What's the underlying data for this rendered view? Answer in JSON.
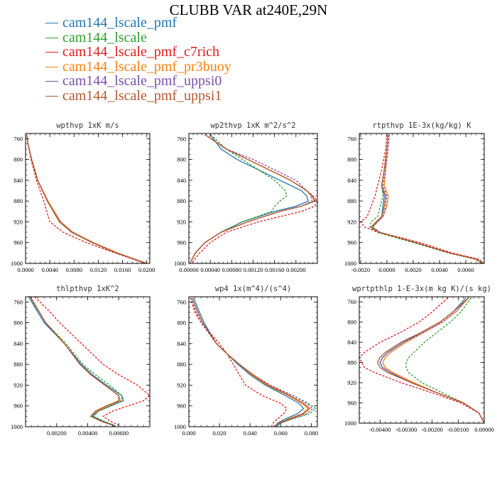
{
  "title": "CLUBB VAR at240E,29N",
  "legend": [
    {
      "name": "cam144_lscale_pmf",
      "color": "#1f77b4"
    },
    {
      "name": "cam144_lscale",
      "color": "#2ca02c"
    },
    {
      "name": "cam144_lscale_pmf_c7rich",
      "color": "#e41a1c"
    },
    {
      "name": "cam144_lscale_pmf_pr3buoy",
      "color": "#ff7f0e"
    },
    {
      "name": "cam144_lscale_pmf_uppsi0",
      "color": "#7b4fa6"
    },
    {
      "name": "cam144_lscale_pmf_uppsi1",
      "color": "#b5562f"
    }
  ],
  "chart_data": [
    {
      "type": "line",
      "title": "wpthvp  1xK m/s",
      "xlim": [
        0,
        0.0205
      ],
      "ylim": [
        1000,
        750
      ],
      "xticks": [
        "0.0000",
        "0.0040",
        "0.0080",
        "0.0120",
        "0.0160",
        "0.0200"
      ],
      "xtick_values": [
        0,
        0.004,
        0.008,
        0.012,
        0.016,
        0.02
      ],
      "yticks": [
        "760",
        "800",
        "840",
        "880",
        "920",
        "960",
        "1000"
      ],
      "ytick_values": [
        760,
        800,
        840,
        880,
        920,
        960,
        1000
      ],
      "y": [
        752,
        770,
        800,
        840,
        880,
        920,
        940,
        960,
        980,
        1000
      ],
      "series": [
        {
          "color": "#1f77b4",
          "x": [
            0.0002,
            0.0004,
            0.001,
            0.002,
            0.0036,
            0.0056,
            0.0076,
            0.011,
            0.015,
            0.02
          ]
        },
        {
          "color": "#2ca02c",
          "x": [
            0.0002,
            0.0004,
            0.001,
            0.002,
            0.0036,
            0.0056,
            0.0076,
            0.011,
            0.015,
            0.02
          ]
        },
        {
          "color": "#e41a1c",
          "x": [
            0.0002,
            0.0004,
            0.0009,
            0.0018,
            0.003,
            0.004,
            0.0062,
            0.01,
            0.0148,
            0.0198
          ],
          "dash": true
        },
        {
          "color": "#ff7f0e",
          "x": [
            0.0002,
            0.0004,
            0.001,
            0.002,
            0.0037,
            0.0058,
            0.0078,
            0.0112,
            0.0152,
            0.02
          ]
        },
        {
          "color": "#7b4fa6",
          "x": [
            0.0002,
            0.0004,
            0.001,
            0.002,
            0.0036,
            0.0057,
            0.0077,
            0.0111,
            0.0151,
            0.02
          ],
          "dash": true
        },
        {
          "color": "#b5562f",
          "x": [
            0.0002,
            0.0004,
            0.001,
            0.002,
            0.0036,
            0.0056,
            0.0076,
            0.011,
            0.015,
            0.02
          ]
        }
      ]
    },
    {
      "type": "line",
      "title": "wp2thvp  1xK m^2/s^2",
      "xlim": [
        0,
        0.0024
      ],
      "ylim": [
        1000,
        750
      ],
      "xticks": [
        "0.00000",
        "0.00040",
        "0.00080",
        "0.00120",
        "0.00160",
        "0.00200"
      ],
      "xtick_values": [
        0,
        0.0004,
        0.0008,
        0.0012,
        0.0016,
        0.002
      ],
      "yticks": [
        "760",
        "800",
        "840",
        "880",
        "920",
        "960",
        "1000"
      ],
      "ytick_values": [
        760,
        800,
        840,
        880,
        920,
        960,
        1000
      ],
      "y": [
        752,
        780,
        800,
        820,
        840,
        860,
        870,
        880,
        890,
        900,
        920,
        940,
        960,
        980,
        1000
      ],
      "series": [
        {
          "color": "#1f77b4",
          "x": [
            0.0004,
            0.0006,
            0.0009,
            0.0013,
            0.0017,
            0.0021,
            0.0022,
            0.00223,
            0.002,
            0.0016,
            0.001,
            0.0006,
            0.0003,
            0.00012,
            2e-05
          ]
        },
        {
          "color": "#2ca02c",
          "x": [
            0.0004,
            0.0007,
            0.001,
            0.0013,
            0.0016,
            0.0018,
            0.00183,
            0.0017,
            0.0016,
            0.00155,
            0.001,
            0.0006,
            0.0003,
            0.00012,
            2e-05
          ],
          "dash": true
        },
        {
          "color": "#e41a1c",
          "x": [
            0.0003,
            0.0007,
            0.0011,
            0.0015,
            0.0019,
            0.0022,
            0.00232,
            0.0024,
            0.00235,
            0.0021,
            0.0013,
            0.0007,
            0.0004,
            0.0002,
            5e-05
          ],
          "dash": true
        },
        {
          "color": "#ff7f0e",
          "x": [
            0.0003,
            0.0007,
            0.0011,
            0.0015,
            0.0019,
            0.0022,
            0.0023,
            0.00234,
            0.0021,
            0.0017,
            0.0011,
            0.0006,
            0.0003,
            0.00012,
            2e-05
          ]
        },
        {
          "color": "#7b4fa6",
          "x": [
            0.0003,
            0.0007,
            0.0012,
            0.0016,
            0.002,
            0.0022,
            0.00228,
            0.0023,
            0.0021,
            0.0017,
            0.0011,
            0.0006,
            0.0003,
            0.00012,
            2e-05
          ],
          "dash": true
        },
        {
          "color": "#b5562f",
          "x": [
            0.0003,
            0.0007,
            0.0011,
            0.0015,
            0.0019,
            0.0022,
            0.0023,
            0.00236,
            0.0021,
            0.0017,
            0.0011,
            0.0006,
            0.0003,
            0.00012,
            2e-05
          ]
        }
      ]
    },
    {
      "type": "line",
      "title": "rtpthvp  1E-3x(kg/kg) K",
      "xlim": [
        -0.0021,
        0.0074
      ],
      "ylim": [
        1000,
        750
      ],
      "xticks": [
        "-0.0020",
        "0.0000",
        "0.0020",
        "0.0040",
        "0.0060"
      ],
      "xtick_values": [
        -0.002,
        0,
        0.002,
        0.004,
        0.006
      ],
      "yticks": [
        "760",
        "800",
        "840",
        "880",
        "920",
        "960",
        "1000"
      ],
      "ytick_values": [
        760,
        800,
        840,
        880,
        920,
        960,
        1000
      ],
      "y": [
        752,
        780,
        820,
        850,
        870,
        890,
        910,
        920,
        930,
        940,
        950,
        960,
        980,
        992,
        1000
      ],
      "series": [
        {
          "color": "#1f77b4",
          "x": [
            0.0001,
            0.0,
            -0.0002,
            -0.0004,
            -0.0002,
            -0.0003,
            -0.0004,
            -0.0008,
            -0.0012,
            -0.0006,
            0.0008,
            0.0022,
            0.0048,
            0.0068,
            0.0073
          ]
        },
        {
          "color": "#2ca02c",
          "x": [
            0.0001,
            0.0,
            -0.0002,
            -0.0004,
            -0.0003,
            -0.0005,
            -0.0007,
            -0.0012,
            -0.0013,
            -0.0008,
            0.0006,
            0.002,
            0.0047,
            0.0067,
            0.0072
          ],
          "dash": true
        },
        {
          "color": "#e41a1c",
          "x": [
            0.0,
            -0.0001,
            -0.0004,
            -0.0007,
            -0.0009,
            -0.0012,
            -0.0015,
            -0.002,
            -0.0017,
            -0.0006,
            0.001,
            0.0025,
            0.005,
            0.007,
            0.0074
          ],
          "dash": true
        },
        {
          "color": "#ff7f0e",
          "x": [
            0.0001,
            0.0,
            -0.0001,
            -0.0002,
            0.0001,
            0.0,
            -0.0003,
            -0.0007,
            -0.0011,
            -0.0006,
            0.0008,
            0.0022,
            0.0048,
            0.0068,
            0.0073
          ]
        },
        {
          "color": "#7b4fa6",
          "x": [
            0.0002,
            0.0001,
            -0.0001,
            -0.0003,
            0.0,
            -0.0001,
            -0.0003,
            -0.0007,
            -0.0011,
            -0.0005,
            0.0008,
            0.0022,
            0.0048,
            0.0068,
            0.0073
          ],
          "dash": true
        },
        {
          "color": "#b5562f",
          "x": [
            0.0001,
            0.0,
            -0.0002,
            -0.0004,
            -0.0001,
            -0.0002,
            -0.0004,
            -0.0008,
            -0.0012,
            -0.0006,
            0.0008,
            0.0022,
            0.0048,
            0.0068,
            0.0073
          ]
        }
      ]
    },
    {
      "type": "line",
      "title": "thlpthvp  1xK^2",
      "xlim": [
        0,
        0.008
      ],
      "ylim": [
        1000,
        750
      ],
      "xticks": [
        "0.00200",
        "0.00400",
        "0.00600"
      ],
      "xtick_values": [
        0.002,
        0.004,
        0.006
      ],
      "yticks": [
        "760",
        "800",
        "840",
        "880",
        "920",
        "960",
        "1000"
      ],
      "ytick_values": [
        760,
        800,
        840,
        880,
        920,
        960,
        1000
      ],
      "y": [
        750,
        780,
        800,
        840,
        880,
        900,
        920,
        940,
        950,
        960,
        970,
        980,
        990,
        997,
        1000
      ],
      "series": [
        {
          "color": "#1f77b4",
          "x": [
            0.0002,
            0.0008,
            0.0012,
            0.0025,
            0.0036,
            0.0043,
            0.0052,
            0.0062,
            0.0063,
            0.0055,
            0.0047,
            0.0043,
            0.005,
            0.0057,
            0.0058
          ]
        },
        {
          "color": "#2ca02c",
          "x": [
            0.0002,
            0.0009,
            0.0013,
            0.0026,
            0.0037,
            0.0045,
            0.0054,
            0.0062,
            0.0062,
            0.0054,
            0.0047,
            0.0044,
            0.0051,
            0.0057,
            0.0058
          ],
          "dash": true
        },
        {
          "color": "#e41a1c",
          "x": [
            0.0006,
            0.0016,
            0.0022,
            0.0036,
            0.005,
            0.006,
            0.0072,
            0.008,
            0.0076,
            0.0066,
            0.0056,
            0.005,
            0.0055,
            0.006,
            0.0061
          ],
          "dash": true
        },
        {
          "color": "#ff7f0e",
          "x": [
            0.0003,
            0.0009,
            0.0013,
            0.0025,
            0.0035,
            0.0042,
            0.0051,
            0.006,
            0.0061,
            0.0053,
            0.0046,
            0.0042,
            0.0049,
            0.0056,
            0.0057
          ]
        },
        {
          "color": "#7b4fa6",
          "x": [
            0.0003,
            0.0009,
            0.0013,
            0.0025,
            0.0035,
            0.0042,
            0.0051,
            0.006,
            0.006,
            0.0052,
            0.0045,
            0.0042,
            0.0049,
            0.0056,
            0.0057
          ],
          "dash": true
        },
        {
          "color": "#b5562f",
          "x": [
            0.0003,
            0.0009,
            0.0013,
            0.0025,
            0.0035,
            0.0042,
            0.0051,
            0.006,
            0.006,
            0.0052,
            0.0045,
            0.0042,
            0.0049,
            0.0056,
            0.0057
          ]
        }
      ]
    },
    {
      "type": "line",
      "title": "wp4  1x(m^4)/(s^4)",
      "xlim": [
        0,
        0.084
      ],
      "ylim": [
        1000,
        750
      ],
      "xticks": [
        "0.000",
        "0.020",
        "0.040",
        "0.060",
        "0.080"
      ],
      "xtick_values": [
        0,
        0.02,
        0.04,
        0.06,
        0.08
      ],
      "yticks": [
        "760",
        "800",
        "840",
        "880",
        "920",
        "960",
        "1000"
      ],
      "ytick_values": [
        760,
        800,
        840,
        880,
        920,
        960,
        1000
      ],
      "y": [
        752,
        780,
        800,
        840,
        860,
        880,
        900,
        920,
        940,
        955,
        965,
        975,
        985,
        993,
        1000
      ],
      "series": [
        {
          "color": "#1f77b4",
          "x": [
            0.003,
            0.007,
            0.01,
            0.018,
            0.025,
            0.032,
            0.04,
            0.05,
            0.063,
            0.072,
            0.075,
            0.071,
            0.063,
            0.058,
            0.056
          ]
        },
        {
          "color": "#2ca02c",
          "x": [
            0.001,
            0.005,
            0.008,
            0.018,
            0.025,
            0.033,
            0.042,
            0.053,
            0.068,
            0.078,
            0.083,
            0.079,
            0.068,
            0.06,
            0.057
          ],
          "dash": true
        },
        {
          "color": "#e41a1c",
          "x": [
            0.001,
            0.004,
            0.008,
            0.02,
            0.025,
            0.029,
            0.033,
            0.037,
            0.048,
            0.06,
            0.064,
            0.062,
            0.058,
            0.055,
            0.054
          ],
          "dash": true
        },
        {
          "color": "#ff7f0e",
          "x": [
            0.002,
            0.006,
            0.009,
            0.018,
            0.025,
            0.033,
            0.041,
            0.051,
            0.065,
            0.074,
            0.078,
            0.074,
            0.065,
            0.059,
            0.057
          ]
        },
        {
          "color": "#7b4fa6",
          "x": [
            0.001,
            0.005,
            0.008,
            0.018,
            0.025,
            0.033,
            0.042,
            0.053,
            0.068,
            0.077,
            0.081,
            0.077,
            0.067,
            0.06,
            0.057
          ],
          "dash": true
        },
        {
          "color": "#b5562f",
          "x": [
            0.002,
            0.006,
            0.009,
            0.018,
            0.025,
            0.033,
            0.042,
            0.052,
            0.066,
            0.075,
            0.079,
            0.075,
            0.066,
            0.059,
            0.057
          ]
        }
      ]
    },
    {
      "type": "line",
      "title": "wprtpthlp  1-E-3x(m kg K)/(s kg)",
      "xlim": [
        -0.0048,
        0.0
      ],
      "ylim": [
        1000,
        750
      ],
      "xticks": [
        "-0.00400",
        "-0.00300",
        "-0.00200",
        "-0.00100",
        "0.00000"
      ],
      "xtick_values": [
        -0.004,
        -0.003,
        -0.002,
        -0.001,
        0
      ],
      "yticks": [
        "760",
        "800",
        "840",
        "880",
        "920",
        "960",
        "1000"
      ],
      "ytick_values": [
        760,
        800,
        840,
        880,
        920,
        960,
        1000
      ],
      "y": [
        752,
        780,
        800,
        820,
        840,
        860,
        870,
        880,
        890,
        900,
        920,
        940,
        960,
        980,
        1000
      ],
      "series": [
        {
          "color": "#1f77b4",
          "x": [
            -0.0007,
            -0.0012,
            -0.0017,
            -0.0024,
            -0.0031,
            -0.0037,
            -0.0039,
            -0.004,
            -0.0039,
            -0.0036,
            -0.0028,
            -0.0018,
            -0.0008,
            -0.0002,
            0.0
          ]
        },
        {
          "color": "#2ca02c",
          "x": [
            -0.0005,
            -0.0009,
            -0.0013,
            -0.0018,
            -0.0023,
            -0.0027,
            -0.0029,
            -0.003,
            -0.003,
            -0.0029,
            -0.0024,
            -0.0016,
            -0.0008,
            -0.0002,
            0.0
          ],
          "dash": true
        },
        {
          "color": "#e41a1c",
          "x": [
            -0.0014,
            -0.002,
            -0.0025,
            -0.0032,
            -0.004,
            -0.0046,
            -0.0048,
            -0.0047,
            -0.0046,
            -0.0042,
            -0.0032,
            -0.002,
            -0.0009,
            -0.0002,
            0.0
          ],
          "dash": true
        },
        {
          "color": "#ff7f0e",
          "x": [
            -0.0006,
            -0.0011,
            -0.0016,
            -0.0023,
            -0.003,
            -0.0036,
            -0.0038,
            -0.0039,
            -0.0038,
            -0.0035,
            -0.0027,
            -0.0018,
            -0.0008,
            -0.0002,
            0.0
          ]
        },
        {
          "color": "#7b4fa6",
          "x": [
            -0.0006,
            -0.0011,
            -0.0016,
            -0.0023,
            -0.0031,
            -0.0037,
            -0.0039,
            -0.004,
            -0.0039,
            -0.0036,
            -0.0028,
            -0.0018,
            -0.0008,
            -0.0002,
            0.0
          ],
          "dash": true
        },
        {
          "color": "#b5562f",
          "x": [
            -0.0006,
            -0.0012,
            -0.0017,
            -0.0024,
            -0.0032,
            -0.0038,
            -0.004,
            -0.0041,
            -0.004,
            -0.0037,
            -0.0028,
            -0.0018,
            -0.0008,
            -0.0002,
            0.0
          ]
        }
      ]
    }
  ]
}
